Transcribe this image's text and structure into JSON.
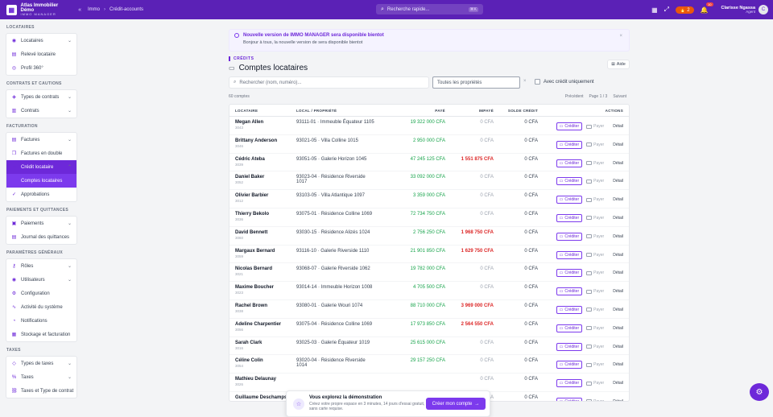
{
  "brand": {
    "name": "Atlas Immobilier Démo",
    "subtitle": "IMMO MANAGER",
    "collapse": "«"
  },
  "breadcrumb": [
    "Immo",
    "Crédit-accounts"
  ],
  "search": {
    "placeholder": "Recherche rapide...",
    "shortcut": "⌘K"
  },
  "topbar": {
    "points": "2",
    "notifications": "10",
    "user_name": "Clarisse Ngassa",
    "user_role": "Agent",
    "avatar": "C"
  },
  "sidebar": {
    "s1": "LOCATAIRES",
    "s1_items": [
      "Locataires",
      "Relevé locataire",
      "Profil 360°"
    ],
    "s2": "CONTRATS ET CAUTIONS",
    "s2_items": [
      "Types de contrats",
      "Contrats"
    ],
    "s3": "FACTURATION",
    "s3_items": [
      "Factures",
      "Factures en double",
      "Crédit locataire",
      "Comptes locataires",
      "Approbations"
    ],
    "s4": "PAIEMENTS ET QUITTANCES",
    "s4_items": [
      "Paiements",
      "Journal des quittances"
    ],
    "s5": "PARAMÈTRES GÉNÉRAUX",
    "s5_items": [
      "Rôles",
      "Utilisateurs",
      "Configuration",
      "Activité du système",
      "Notifications",
      "Stockage et facturation"
    ],
    "s6": "TAXES",
    "s6_items": [
      "Types de taxes",
      "Taxes",
      "Taxes et Type de contrat"
    ]
  },
  "notice": {
    "title": "Nouvelle version de IMMO MANAGER sera disponible bientot",
    "body": "Bonjour à tous, la nouvelle version de sera disponible bientot",
    "close": "×"
  },
  "page": {
    "eyebrow": "CRÉDITS",
    "title": "Comptes locataires",
    "help": "Aide"
  },
  "filters": {
    "search_placeholder": "Rechercher (nom, numéro)...",
    "property_select": "Toutes les propriétés",
    "clear": "×",
    "credit_only": "Avec crédit uniquement"
  },
  "meta": {
    "count": "60 comptes",
    "prev": "Précédent",
    "page": "Page 1 / 3",
    "next": "Suivant"
  },
  "columns": [
    "LOCATAIRE",
    "LOCAL / PROPRIÉTÉ",
    "PAYÉ",
    "IMPAYÉ",
    "SOLDE CRÉDIT",
    "ACTIONS"
  ],
  "actions": {
    "credit": "Créditer",
    "pay": "Payer",
    "detail": "Détail"
  },
  "rows": [
    {
      "name": "Megan Allen",
      "code": "3043",
      "prop": "93111-01 · Immeuble Équateur 1105",
      "paid": "19 322 000 CFA",
      "unpaid": "0 CFA",
      "credit": "0 CFA",
      "red": false
    },
    {
      "name": "Brittany Anderson",
      "code": "3046",
      "prop": "93021-05 · Villa Colline 1015",
      "paid": "2 950 000 CFA",
      "unpaid": "0 CFA",
      "credit": "0 CFA",
      "red": false
    },
    {
      "name": "Cédric Ateba",
      "code": "3039",
      "prop": "93051-05 · Galerie Horizon 1045",
      "paid": "47 245 125 CFA",
      "unpaid": "1 551 875 CFA",
      "credit": "0 CFA",
      "red": true
    },
    {
      "name": "Daniel Baker",
      "code": "3052",
      "prop": "93023-04 · Résidence Riverside 1017",
      "paid": "33 092 000 CFA",
      "unpaid": "0 CFA",
      "credit": "0 CFA",
      "red": false
    },
    {
      "name": "Olivier Barbier",
      "code": "3012",
      "prop": "93103-05 · Villa Atlantique 1097",
      "paid": "3 359 000 CFA",
      "unpaid": "0 CFA",
      "credit": "0 CFA",
      "red": false
    },
    {
      "name": "Thierry Bekolo",
      "code": "3036",
      "prop": "93075-01 · Résidence Colline 1069",
      "paid": "72 734 750 CFA",
      "unpaid": "0 CFA",
      "credit": "0 CFA",
      "red": false
    },
    {
      "name": "David Bennett",
      "code": "3060",
      "prop": "93030-15 · Résidence Alizés 1024",
      "paid": "2 756 250 CFA",
      "unpaid": "1 968 750 CFA",
      "credit": "0 CFA",
      "red": true
    },
    {
      "name": "Margaux Bernard",
      "code": "3059",
      "prop": "93116-10 · Galerie Riverside 1110",
      "paid": "21 901 850 CFA",
      "unpaid": "1 629 750 CFA",
      "credit": "0 CFA",
      "red": true
    },
    {
      "name": "Nicolas Bernard",
      "code": "3021",
      "prop": "93068-07 · Galerie Riverside 1062",
      "paid": "19 782 000 CFA",
      "unpaid": "0 CFA",
      "credit": "0 CFA",
      "red": false
    },
    {
      "name": "Maxime Boucher",
      "code": "3023",
      "prop": "93014-14 · Immeuble Horizon 1008",
      "paid": "4 705 500 CFA",
      "unpaid": "0 CFA",
      "credit": "0 CFA",
      "red": false
    },
    {
      "name": "Rachel Brown",
      "code": "3038",
      "prop": "93080-01 · Galerie Wouri 1074",
      "paid": "88 710 000 CFA",
      "unpaid": "3 969 000 CFA",
      "credit": "0 CFA",
      "red": true
    },
    {
      "name": "Adeline Charpentier",
      "code": "3056",
      "prop": "93075-04 · Résidence Colline 1069",
      "paid": "17 973 850 CFA",
      "unpaid": "2 564 550 CFA",
      "credit": "0 CFA",
      "red": true
    },
    {
      "name": "Sarah Clark",
      "code": "3016",
      "prop": "93025-03 · Galerie Équateur 1019",
      "paid": "25 615 000 CFA",
      "unpaid": "0 CFA",
      "credit": "0 CFA",
      "red": false
    },
    {
      "name": "Céline Colin",
      "code": "3054",
      "prop": "93020-04 · Résidence Riverside 1014",
      "paid": "29 157 250 CFA",
      "unpaid": "0 CFA",
      "credit": "0 CFA",
      "red": false
    },
    {
      "name": "Mathieu Delaunay",
      "code": "3026",
      "prop": "",
      "paid": "",
      "unpaid": "0 CFA",
      "credit": "0 CFA",
      "red": false
    },
    {
      "name": "Guillaume Deschamps",
      "code": "",
      "prop": "93100-10 · Galerie Belvédère 1094",
      "paid": "4 854 000 CFA",
      "unpaid": "0 CFA",
      "credit": "0 CFA",
      "red": false
    }
  ],
  "demo": {
    "title": "Vous explorez la démonstration",
    "body": "Créez votre propre espace en 3 minutes, 14 jours d'essai gratuit, sans carte requise.",
    "cta": "Créer mon compte",
    "cta_arrow": "→"
  }
}
